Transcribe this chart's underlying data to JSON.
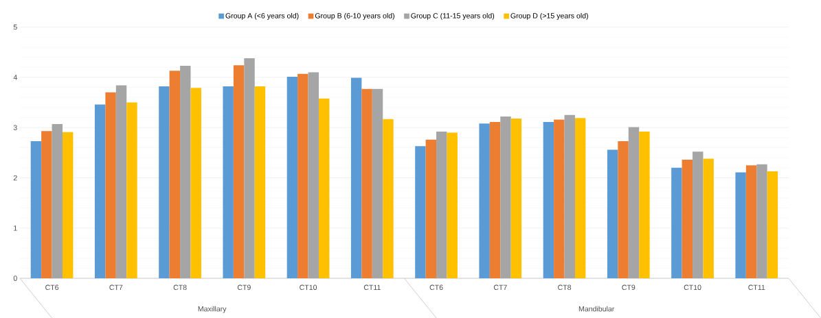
{
  "chart_data": {
    "type": "bar",
    "categories": [
      "CT6",
      "CT7",
      "CT8",
      "CT9",
      "CT10",
      "CT11",
      "CT6",
      "CT7",
      "CT8",
      "CT9",
      "CT10",
      "CT11"
    ],
    "series": [
      {
        "name": "Group A (<6 years old)",
        "color": "#5b9bd5",
        "values": [
          2.73,
          3.46,
          3.82,
          3.82,
          4.01,
          3.99,
          2.63,
          3.08,
          3.11,
          2.56,
          2.2,
          2.11
        ]
      },
      {
        "name": "Group B (6-10 years old)",
        "color": "#ed7d31",
        "values": [
          2.93,
          3.7,
          4.13,
          4.24,
          4.07,
          3.77,
          2.76,
          3.11,
          3.16,
          2.73,
          2.36,
          2.25
        ]
      },
      {
        "name": "Group C (11-15 years old)",
        "color": "#a5a5a5",
        "values": [
          3.07,
          3.84,
          4.23,
          4.38,
          4.1,
          3.77,
          2.92,
          3.22,
          3.25,
          3.01,
          2.52,
          2.27
        ]
      },
      {
        "name": "Group D (>15 years old)",
        "color": "#ffc000",
        "values": [
          2.91,
          3.5,
          3.79,
          3.82,
          3.58,
          3.17,
          2.9,
          3.18,
          3.19,
          2.92,
          2.38,
          2.13
        ]
      }
    ],
    "annotations": [
      "Maxillary",
      "Mandibular"
    ],
    "ylim": [
      0,
      5
    ],
    "yticks": [
      0,
      1,
      2,
      3,
      4,
      5
    ],
    "grid": "y",
    "legend": "top"
  }
}
